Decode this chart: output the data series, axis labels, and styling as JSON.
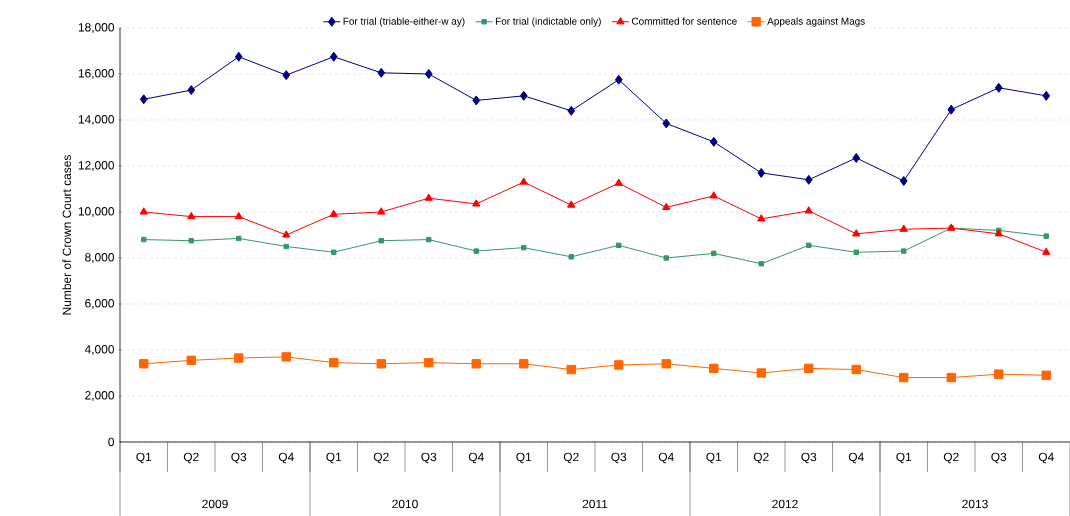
{
  "chart_data": {
    "type": "line",
    "ylabel": "Number of Crown Court cases",
    "categories": [
      "Q1",
      "Q2",
      "Q3",
      "Q4",
      "Q1",
      "Q2",
      "Q3",
      "Q4",
      "Q1",
      "Q2",
      "Q3",
      "Q4",
      "Q1",
      "Q2",
      "Q3",
      "Q4",
      "Q1",
      "Q2",
      "Q3",
      "Q4"
    ],
    "annotations": [
      "2009",
      "2010",
      "2011",
      "2012",
      "2013"
    ],
    "ylim": [
      0,
      18000
    ],
    "yticks": [
      0,
      {
        "value": 2000,
        "label": "2,000"
      },
      {
        "value": 4000,
        "label": "4,000"
      },
      {
        "value": 6000,
        "label": "6,000"
      },
      {
        "value": 8000,
        "label": "8,000"
      },
      {
        "value": 10000,
        "label": "10,000"
      },
      {
        "value": 12000,
        "label": "12,000"
      },
      {
        "value": 14000,
        "label": "14,000"
      },
      {
        "value": 16000,
        "label": "16,000"
      },
      {
        "value": 18000,
        "label": "18,000"
      }
    ],
    "grid": "y",
    "legend": "top",
    "line_style": "solid",
    "series": [
      {
        "name": "For trial (triable-either-w ay)",
        "color": "#000080",
        "marker": "diamond",
        "values": [
          14900,
          15300,
          16750,
          15950,
          16750,
          16050,
          16000,
          14850,
          15050,
          14400,
          15750,
          13850,
          13050,
          11700,
          11400,
          12350,
          11350,
          14450,
          15400,
          15050
        ]
      },
      {
        "name": "For trial (indictable only)",
        "color": "#339966",
        "marker": "square",
        "values": [
          8800,
          8750,
          8850,
          8500,
          8250,
          8750,
          8800,
          8300,
          8450,
          8050,
          8550,
          8000,
          8200,
          7750,
          8550,
          8250,
          8300,
          9300,
          9200,
          8950
        ]
      },
      {
        "name": "Committed for sentence",
        "color": "#ff0000",
        "marker": "triangle",
        "values": [
          10000,
          9800,
          9800,
          9000,
          9900,
          10000,
          10600,
          10350,
          11300,
          10300,
          11250,
          10200,
          10700,
          9700,
          10050,
          9050,
          9250,
          9300,
          9050,
          8250
        ]
      },
      {
        "name": "Appeals against Mags",
        "color": "#ff6600",
        "marker": "square",
        "values": [
          3400,
          3550,
          3650,
          3700,
          3450,
          3400,
          3450,
          3400,
          3400,
          3150,
          3350,
          3400,
          3200,
          3000,
          3200,
          3150,
          2800,
          2800,
          2950,
          2900
        ]
      }
    ]
  }
}
